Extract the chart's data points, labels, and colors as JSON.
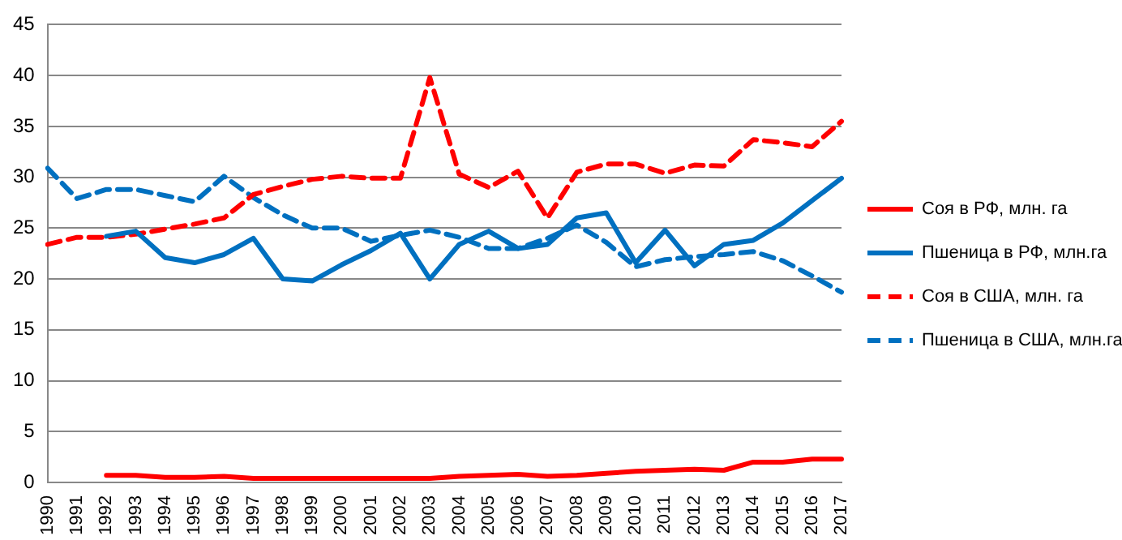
{
  "chart_data": {
    "type": "line",
    "categories": [
      "1990",
      "1991",
      "1992",
      "1993",
      "1994",
      "1995",
      "1996",
      "1997",
      "1998",
      "1999",
      "2000",
      "2001",
      "2002",
      "2003",
      "2004",
      "2005",
      "2006",
      "2007",
      "2008",
      "2009",
      "2010",
      "2011",
      "2012",
      "2013",
      "2014",
      "2015",
      "2016",
      "2017"
    ],
    "ylim": [
      0,
      45
    ],
    "yticks": [
      0,
      5,
      10,
      15,
      20,
      25,
      30,
      35,
      40,
      45
    ],
    "grid": "y",
    "legend": "right",
    "marker": "none",
    "series": [
      {
        "name": "Соя в РФ, млн. га",
        "color": "#ff0000",
        "line_style": "solid",
        "values": [
          null,
          null,
          0.7,
          0.7,
          0.5,
          0.5,
          0.6,
          0.4,
          0.4,
          0.4,
          0.4,
          0.4,
          0.4,
          0.4,
          0.6,
          0.7,
          0.8,
          0.6,
          0.7,
          0.9,
          1.1,
          1.2,
          1.3,
          1.2,
          2.0,
          2.0,
          2.3,
          2.3
        ]
      },
      {
        "name": "Пшеница в РФ, млн.га",
        "color": "#0070c0",
        "line_style": "solid",
        "values": [
          null,
          null,
          24.2,
          24.7,
          22.1,
          21.6,
          22.4,
          24.0,
          20.0,
          19.8,
          21.4,
          22.8,
          24.5,
          20.0,
          23.4,
          24.7,
          23.0,
          23.4,
          26.0,
          26.5,
          21.6,
          24.8,
          21.3,
          23.4,
          23.8,
          25.5,
          27.7,
          29.9
        ]
      },
      {
        "name": "Соя в США, млн. га",
        "color": "#ff0000",
        "line_style": "dashed",
        "values": [
          23.4,
          24.1,
          24.1,
          24.4,
          24.9,
          25.4,
          26.0,
          28.3,
          29.1,
          29.8,
          30.1,
          29.9,
          29.9,
          39.8,
          30.3,
          29.0,
          30.6,
          26.0,
          30.5,
          31.3,
          31.3,
          30.4,
          31.2,
          31.1,
          33.7,
          33.4,
          33.0,
          35.5
        ]
      },
      {
        "name": "Пшеница в США, млн.га",
        "color": "#0070c0",
        "line_style": "dashed",
        "values": [
          30.9,
          27.9,
          28.8,
          28.8,
          28.2,
          27.6,
          30.1,
          28.0,
          26.3,
          25.0,
          25.0,
          23.7,
          24.3,
          24.8,
          24.1,
          23.0,
          23.0,
          24.0,
          25.3,
          23.6,
          21.2,
          21.9,
          22.2,
          22.4,
          22.7,
          21.8,
          20.3,
          18.7
        ]
      }
    ]
  }
}
